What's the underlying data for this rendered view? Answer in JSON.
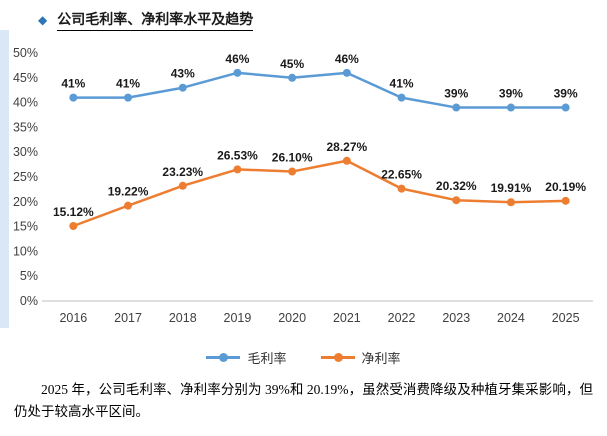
{
  "accent": {
    "bullet": "◆",
    "bullet_color": "#2e75b6",
    "stripe_color": "#d9e7f6"
  },
  "header": {
    "title": "公司毛利率、净利率水平及趋势"
  },
  "chart_data": {
    "type": "line",
    "categories": [
      "2016",
      "2017",
      "2018",
      "2019",
      "2020",
      "2021",
      "2022",
      "2023",
      "2024",
      "2025"
    ],
    "series": [
      {
        "name": "毛利率",
        "color": "#5b9bd5",
        "values": [
          41,
          41,
          43,
          46,
          45,
          46,
          41,
          39,
          39,
          39
        ],
        "labels": [
          "41%",
          "41%",
          "43%",
          "46%",
          "45%",
          "46%",
          "41%",
          "39%",
          "39%",
          "39%"
        ]
      },
      {
        "name": "净利率",
        "color": "#ed7d31",
        "values": [
          15.12,
          19.22,
          23.23,
          26.53,
          26.1,
          28.27,
          22.65,
          20.32,
          19.91,
          20.19
        ],
        "labels": [
          "15.12%",
          "19.22%",
          "23.23%",
          "26.53%",
          "26.10%",
          "28.27%",
          "22.65%",
          "20.32%",
          "19.91%",
          "20.19%"
        ]
      }
    ],
    "ylim": [
      0,
      50
    ],
    "ytick_step": 5,
    "ytick_labels": [
      "0%",
      "5%",
      "10%",
      "15%",
      "20%",
      "25%",
      "30%",
      "35%",
      "40%",
      "45%",
      "50%"
    ],
    "grid": false,
    "legend_position": "bottom"
  },
  "footer": {
    "text": "2025 年，公司毛利率、净利率分别为 39%和 20.19%，虽然受消费降级及种植牙集采影响，但仍处于较高水平区间。"
  }
}
